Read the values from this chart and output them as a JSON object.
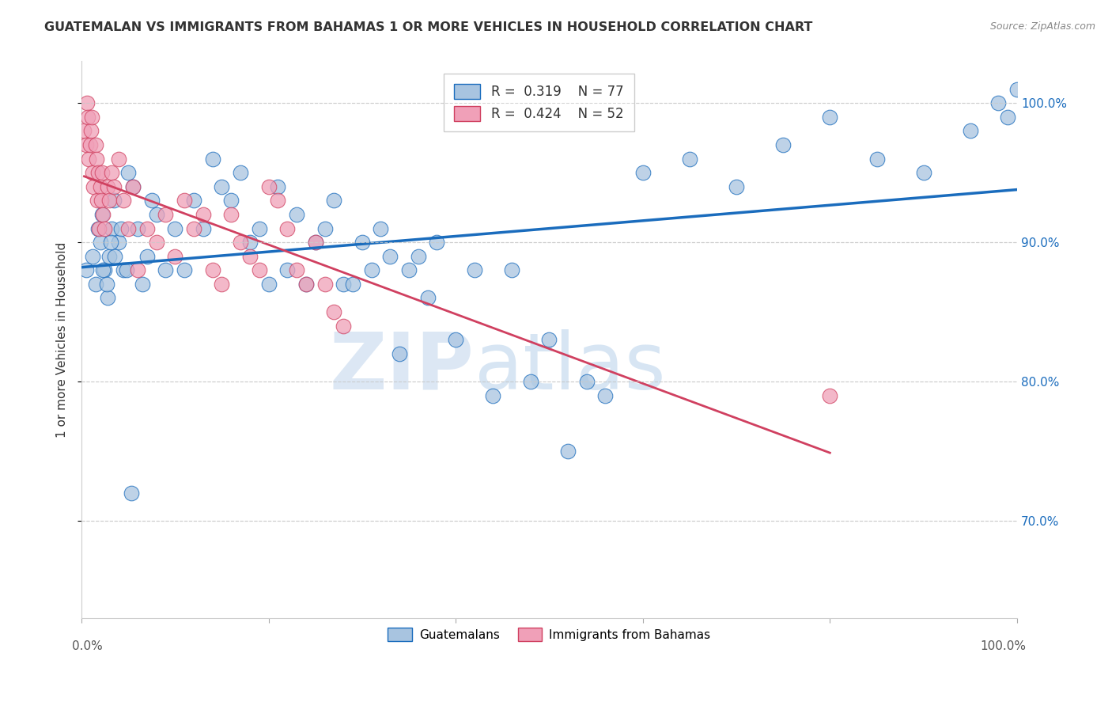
{
  "title": "GUATEMALAN VS IMMIGRANTS FROM BAHAMAS 1 OR MORE VEHICLES IN HOUSEHOLD CORRELATION CHART",
  "source": "Source: ZipAtlas.com",
  "ylabel": "1 or more Vehicles in Household",
  "xlim": [
    0,
    100
  ],
  "ylim": [
    63,
    103
  ],
  "yticks": [
    70,
    80,
    90,
    100
  ],
  "legend_blue_r": "0.319",
  "legend_blue_n": "77",
  "legend_pink_r": "0.424",
  "legend_pink_n": "52",
  "blue_color": "#a8c4e0",
  "pink_color": "#f0a0b8",
  "trend_blue_color": "#1a6cbd",
  "trend_pink_color": "#d04060",
  "watermark_zip": "ZIP",
  "watermark_atlas": "atlas",
  "blue_scatter_x": [
    0.5,
    1.2,
    1.5,
    1.8,
    2.0,
    2.2,
    2.5,
    2.8,
    3.0,
    3.2,
    3.5,
    4.0,
    4.5,
    5.0,
    5.5,
    6.0,
    6.5,
    7.0,
    7.5,
    8.0,
    9.0,
    10.0,
    11.0,
    12.0,
    13.0,
    14.0,
    15.0,
    16.0,
    17.0,
    18.0,
    19.0,
    20.0,
    21.0,
    22.0,
    23.0,
    24.0,
    25.0,
    26.0,
    27.0,
    28.0,
    29.0,
    30.0,
    31.0,
    32.0,
    33.0,
    34.0,
    35.0,
    36.0,
    37.0,
    38.0,
    40.0,
    42.0,
    44.0,
    46.0,
    48.0,
    50.0,
    52.0,
    54.0,
    56.0,
    60.0,
    65.0,
    70.0,
    75.0,
    80.0,
    85.0,
    90.0,
    95.0,
    98.0,
    99.0,
    100.0,
    2.3,
    2.7,
    3.1,
    3.6,
    4.2,
    4.8,
    5.3
  ],
  "blue_scatter_y": [
    88,
    89,
    87,
    91,
    90,
    92,
    88,
    86,
    89,
    91,
    93,
    90,
    88,
    95,
    94,
    91,
    87,
    89,
    93,
    92,
    88,
    91,
    88,
    93,
    91,
    96,
    94,
    93,
    95,
    90,
    91,
    87,
    94,
    88,
    92,
    87,
    90,
    91,
    93,
    87,
    87,
    90,
    88,
    91,
    89,
    82,
    88,
    89,
    86,
    90,
    83,
    88,
    79,
    88,
    80,
    83,
    75,
    80,
    79,
    95,
    96,
    94,
    97,
    99,
    96,
    95,
    98,
    100,
    99,
    101,
    88,
    87,
    90,
    89,
    91,
    88,
    72
  ],
  "pink_scatter_x": [
    0.3,
    0.5,
    0.6,
    0.7,
    0.8,
    0.9,
    1.0,
    1.1,
    1.2,
    1.3,
    1.5,
    1.6,
    1.7,
    1.8,
    1.9,
    2.0,
    2.1,
    2.2,
    2.3,
    2.5,
    2.8,
    3.0,
    3.2,
    3.5,
    4.0,
    4.5,
    5.0,
    5.5,
    6.0,
    7.0,
    8.0,
    9.0,
    10.0,
    11.0,
    12.0,
    13.0,
    14.0,
    15.0,
    16.0,
    17.0,
    18.0,
    19.0,
    20.0,
    21.0,
    22.0,
    23.0,
    24.0,
    25.0,
    26.0,
    27.0,
    28.0,
    80.0
  ],
  "pink_scatter_y": [
    98,
    97,
    100,
    99,
    96,
    97,
    98,
    99,
    95,
    94,
    97,
    96,
    93,
    95,
    91,
    94,
    93,
    95,
    92,
    91,
    94,
    93,
    95,
    94,
    96,
    93,
    91,
    94,
    88,
    91,
    90,
    92,
    89,
    93,
    91,
    92,
    88,
    87,
    92,
    90,
    89,
    88,
    94,
    93,
    91,
    88,
    87,
    90,
    87,
    85,
    84,
    79
  ]
}
